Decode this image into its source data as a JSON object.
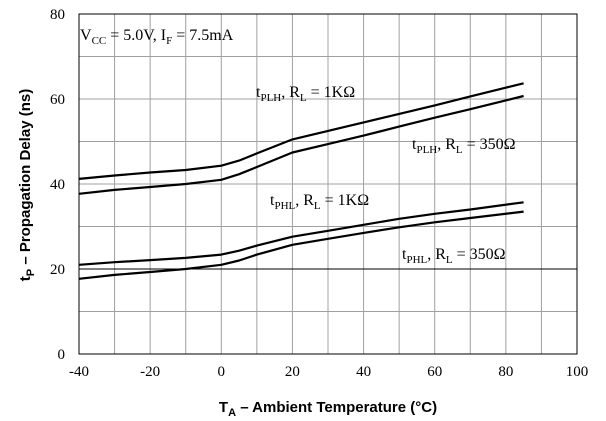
{
  "chart_data": {
    "type": "line",
    "xlabel": "Tₐ – Ambient Temperature (°C)",
    "xlabel_main": "T",
    "xlabel_sub": "A",
    "xlabel_rest": " – Ambient Temperature (°C)",
    "ylabel_main": "t",
    "ylabel_sub": "P",
    "ylabel_rest": " – Propagation Delay  (ns)",
    "xlim": [
      -40,
      100
    ],
    "ylim": [
      0,
      80
    ],
    "x_ticks": [
      "-40",
      "-20",
      "0",
      "20",
      "40",
      "60",
      "80",
      "100"
    ],
    "y_ticks": [
      "0",
      "20",
      "40",
      "60",
      "80"
    ],
    "grid": true,
    "conditions": {
      "vcc_main": "V",
      "vcc_sub": "CC",
      "vcc_rest": " = 5.0V, I",
      "if_sub": "F",
      "if_rest": " = 7.5mA"
    },
    "series": [
      {
        "name": "tPLH, RL = 1KΩ",
        "label_main": "t",
        "label_sub": "PLH",
        "label_mid": ", R",
        "label_sub2": "L",
        "label_rest": " = 1KΩ",
        "x": [
          -40,
          -30,
          -20,
          -10,
          0,
          5,
          10,
          20,
          30,
          40,
          50,
          60,
          70,
          85
        ],
        "y": [
          41.2,
          42.0,
          42.7,
          43.3,
          44.3,
          45.5,
          47.2,
          50.5,
          52.5,
          54.5,
          56.5,
          58.5,
          60.6,
          63.7
        ]
      },
      {
        "name": "tPLH, RL = 350Ω",
        "label_main": "t",
        "label_sub": "PLH",
        "label_mid": ", R",
        "label_sub2": "L",
        "label_rest": " = 350Ω",
        "x": [
          -40,
          -30,
          -20,
          -10,
          0,
          5,
          10,
          20,
          30,
          40,
          50,
          60,
          70,
          85
        ],
        "y": [
          37.7,
          38.6,
          39.3,
          40.0,
          41.0,
          42.3,
          44.0,
          47.4,
          49.4,
          51.4,
          53.5,
          55.6,
          57.6,
          60.7
        ]
      },
      {
        "name": "tPHL, RL = 1KΩ",
        "label_main": "t",
        "label_sub": "PHL",
        "label_mid": ", R",
        "label_sub2": "L",
        "label_rest": " = 1KΩ",
        "x": [
          -40,
          -30,
          -20,
          -10,
          0,
          5,
          10,
          20,
          30,
          40,
          50,
          60,
          70,
          85
        ],
        "y": [
          21.0,
          21.6,
          22.1,
          22.6,
          23.4,
          24.3,
          25.5,
          27.6,
          29.0,
          30.4,
          31.8,
          33.0,
          34.0,
          35.7
        ]
      },
      {
        "name": "tPHL, RL = 350Ω",
        "label_main": "t",
        "label_sub": "PHL",
        "label_mid": ", R",
        "label_sub2": "L",
        "label_rest": " = 350Ω",
        "x": [
          -40,
          -30,
          -20,
          -10,
          0,
          5,
          10,
          20,
          30,
          40,
          50,
          60,
          70,
          85
        ],
        "y": [
          17.7,
          18.6,
          19.3,
          20.0,
          21.0,
          22.0,
          23.4,
          25.7,
          27.1,
          28.5,
          29.8,
          31.0,
          32.0,
          33.5
        ]
      }
    ]
  }
}
